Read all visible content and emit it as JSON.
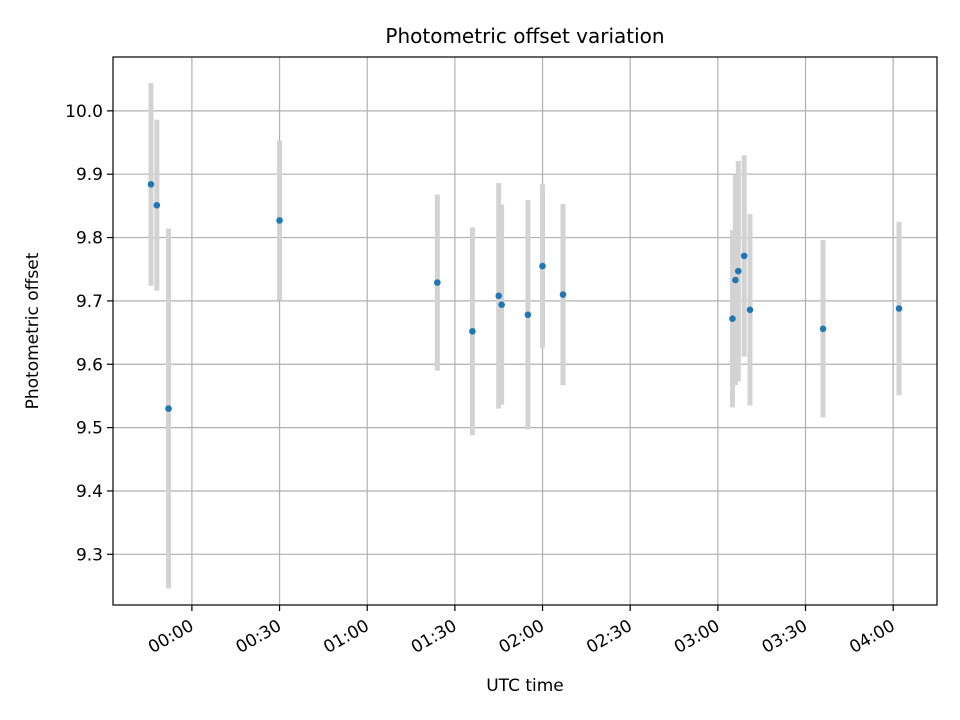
{
  "chart_data": {
    "type": "scatter",
    "title": "Photometric offset variation",
    "xlabel": "UTC time",
    "ylabel": "Photometric offset",
    "x_axis": {
      "kind": "time",
      "range": [
        "23:33",
        "04:15"
      ],
      "ticks": [
        "00:00",
        "00:30",
        "01:00",
        "01:30",
        "02:00",
        "02:30",
        "03:00",
        "03:30",
        "04:00"
      ]
    },
    "y_axis": {
      "range": [
        9.22,
        10.085
      ],
      "ticks": [
        "9.3",
        "9.4",
        "9.5",
        "9.6",
        "9.7",
        "9.8",
        "9.9",
        "10.0"
      ]
    },
    "grid": true,
    "marker_color": "#1f77b4",
    "errorbar_color": "#d3d3d3",
    "points": [
      {
        "x": "23:46",
        "y": 9.884,
        "ylow": 9.724,
        "yhigh": 10.044
      },
      {
        "x": "23:48",
        "y": 9.851,
        "ylow": 9.716,
        "yhigh": 9.986
      },
      {
        "x": "23:52",
        "y": 9.53,
        "ylow": 9.246,
        "yhigh": 9.814
      },
      {
        "x": "00:30",
        "y": 9.827,
        "ylow": 9.701,
        "yhigh": 9.953
      },
      {
        "x": "01:24",
        "y": 9.729,
        "ylow": 9.59,
        "yhigh": 9.868
      },
      {
        "x": "01:36",
        "y": 9.652,
        "ylow": 9.488,
        "yhigh": 9.816
      },
      {
        "x": "01:45",
        "y": 9.708,
        "ylow": 9.53,
        "yhigh": 9.886
      },
      {
        "x": "01:46",
        "y": 9.694,
        "ylow": 9.536,
        "yhigh": 9.852
      },
      {
        "x": "01:55",
        "y": 9.678,
        "ylow": 9.497,
        "yhigh": 9.859
      },
      {
        "x": "02:00",
        "y": 9.755,
        "ylow": 9.626,
        "yhigh": 9.884
      },
      {
        "x": "02:07",
        "y": 9.71,
        "ylow": 9.567,
        "yhigh": 9.853
      },
      {
        "x": "03:05",
        "y": 9.672,
        "ylow": 9.532,
        "yhigh": 9.812
      },
      {
        "x": "03:06",
        "y": 9.733,
        "ylow": 9.567,
        "yhigh": 9.899
      },
      {
        "x": "03:07",
        "y": 9.747,
        "ylow": 9.573,
        "yhigh": 9.921
      },
      {
        "x": "03:09",
        "y": 9.771,
        "ylow": 9.612,
        "yhigh": 9.93
      },
      {
        "x": "03:11",
        "y": 9.686,
        "ylow": 9.535,
        "yhigh": 9.837
      },
      {
        "x": "03:36",
        "y": 9.656,
        "ylow": 9.516,
        "yhigh": 9.796
      },
      {
        "x": "04:02",
        "y": 9.688,
        "ylow": 9.551,
        "yhigh": 9.825
      }
    ]
  }
}
